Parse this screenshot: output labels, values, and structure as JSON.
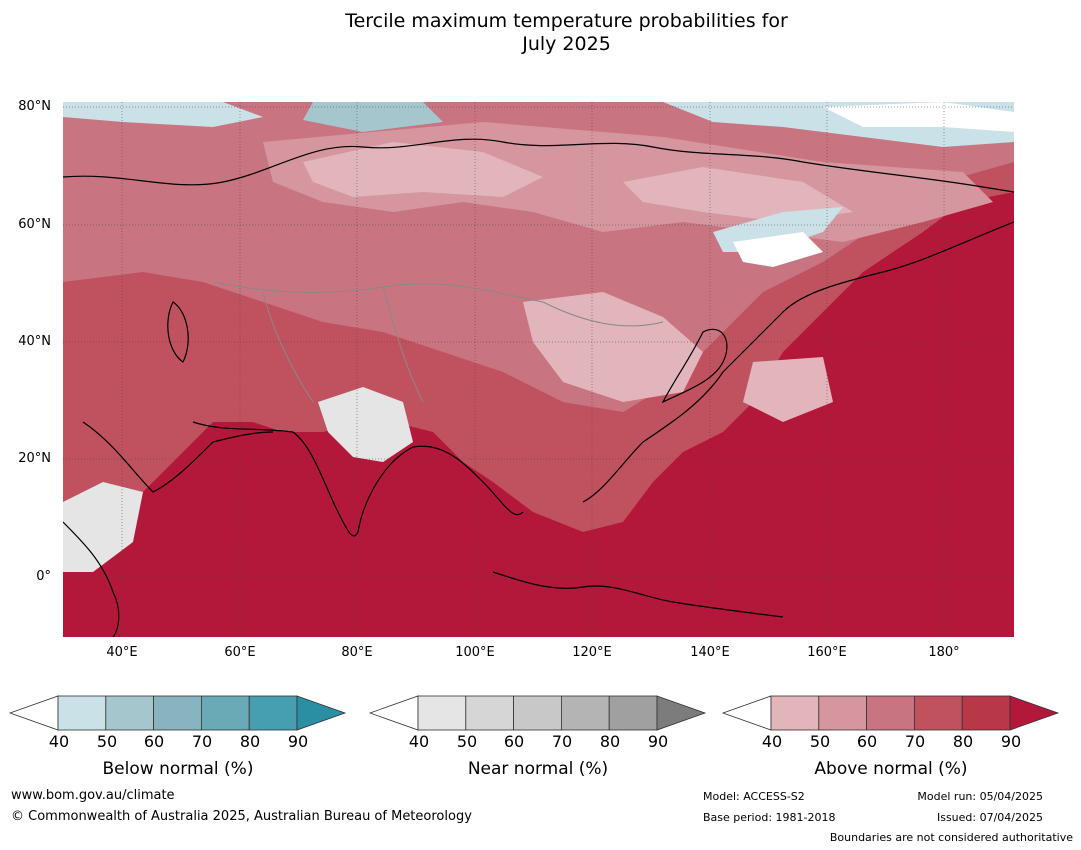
{
  "title_line1": "Tercile maximum temperature probabilities for",
  "title_line2": "July 2025",
  "lat_labels": [
    "80°N",
    "60°N",
    "40°N",
    "20°N",
    "0°"
  ],
  "lon_labels": [
    "40°E",
    "60°E",
    "80°E",
    "100°E",
    "120°E",
    "140°E",
    "160°E",
    "180°"
  ],
  "colorbars": [
    {
      "label": "Below normal (%)",
      "ticks": [
        "40",
        "50",
        "60",
        "70",
        "80",
        "90"
      ],
      "colors": [
        "#c9e1e7",
        "#a6c6cd",
        "#88b4c0",
        "#6aaab7",
        "#469fb0",
        "#2a8fa3"
      ]
    },
    {
      "label": "Near normal (%)",
      "ticks": [
        "40",
        "50",
        "60",
        "70",
        "80",
        "90"
      ],
      "colors": [
        "#e5e5e5",
        "#d6d6d6",
        "#c8c8c8",
        "#b4b4b4",
        "#a0a0a0",
        "#7c7c7c"
      ]
    },
    {
      "label": "Above normal (%)",
      "ticks": [
        "40",
        "50",
        "60",
        "70",
        "80",
        "90"
      ],
      "colors": [
        "#e2b5bc",
        "#d5969f",
        "#c97581",
        "#c0525f",
        "#b83749",
        "#b3183a"
      ]
    }
  ],
  "footer": {
    "website": "www.bom.gov.au/climate",
    "copyright": "© Commonwealth of Australia 2025, Australian Bureau of Meteorology",
    "model": "Model: ACCESS-S2",
    "base_period": "Base period: 1981-2018",
    "model_run": "Model run: 05/04/2025",
    "issued": "Issued: 07/04/2025",
    "disclaimer": "Boundaries are not considered authoritative"
  },
  "map_colors": {
    "ocean_above": "#b3183a",
    "land_above_70": "#c0525f",
    "above_60": "#c97581",
    "above_50": "#d5969f",
    "above_40": "#e2b5bc",
    "near_40": "#e5e5e5",
    "below_40": "#c9e1e7",
    "below_50": "#a6c6cd",
    "neutral": "#ffffff"
  }
}
